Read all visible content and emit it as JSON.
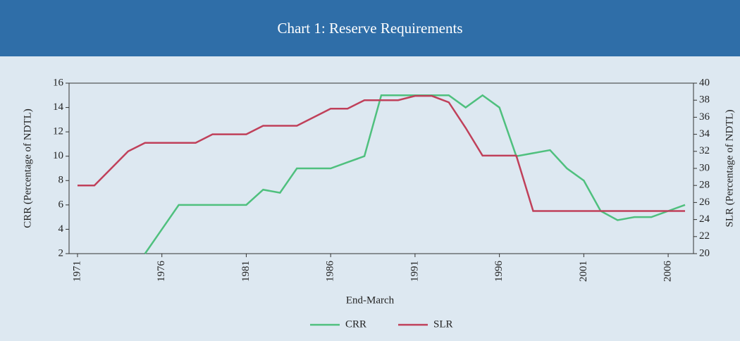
{
  "chart_data": {
    "type": "line",
    "title": "Chart 1: Reserve Requirements",
    "x_label": "End-March",
    "y_label": "CRR (Percentage of NDTL)",
    "y2_label": "SLR (Percentage of NDTL)",
    "x": [
      1971,
      1972,
      1973,
      1974,
      1975,
      1976,
      1977,
      1978,
      1979,
      1980,
      1981,
      1982,
      1983,
      1984,
      1985,
      1986,
      1987,
      1988,
      1989,
      1990,
      1991,
      1992,
      1993,
      1994,
      1995,
      1996,
      1997,
      1998,
      1999,
      2000,
      2001,
      2002,
      2003,
      2004,
      2005,
      2006,
      2007
    ],
    "xlim": [
      1970.5,
      2007.5
    ],
    "xticks": [
      1971,
      1976,
      1981,
      1986,
      1991,
      1996,
      2001,
      2006
    ],
    "ylim": [
      2,
      16
    ],
    "yticks": [
      2,
      4,
      6,
      8,
      10,
      12,
      14,
      16
    ],
    "y2lim": [
      20,
      40
    ],
    "y2ticks": [
      20,
      22,
      24,
      26,
      28,
      30,
      32,
      34,
      36,
      38,
      40
    ],
    "series": [
      {
        "name": "CRR",
        "color": "#4fc07e",
        "values": [
          null,
          null,
          null,
          null,
          2,
          4,
          6,
          6,
          6,
          6,
          6,
          7.25,
          7,
          9,
          9,
          9,
          9.5,
          10,
          15,
          15,
          15,
          15,
          15,
          14,
          15,
          14,
          10,
          10.25,
          10.5,
          9,
          8,
          5.5,
          4.75,
          5,
          5,
          5.5,
          6
        ]
      },
      {
        "name": "SLR",
        "color": "#c0405a",
        "axis": "y2",
        "values": [
          28,
          28,
          30,
          32,
          33,
          33,
          33,
          33,
          34,
          34,
          34,
          35,
          35,
          35,
          36,
          37,
          37,
          38,
          38,
          38,
          38.5,
          38.5,
          37.75,
          34.75,
          31.5,
          31.5,
          31.5,
          25,
          25,
          25,
          25,
          25,
          25,
          25,
          25,
          25,
          25
        ]
      }
    ]
  }
}
